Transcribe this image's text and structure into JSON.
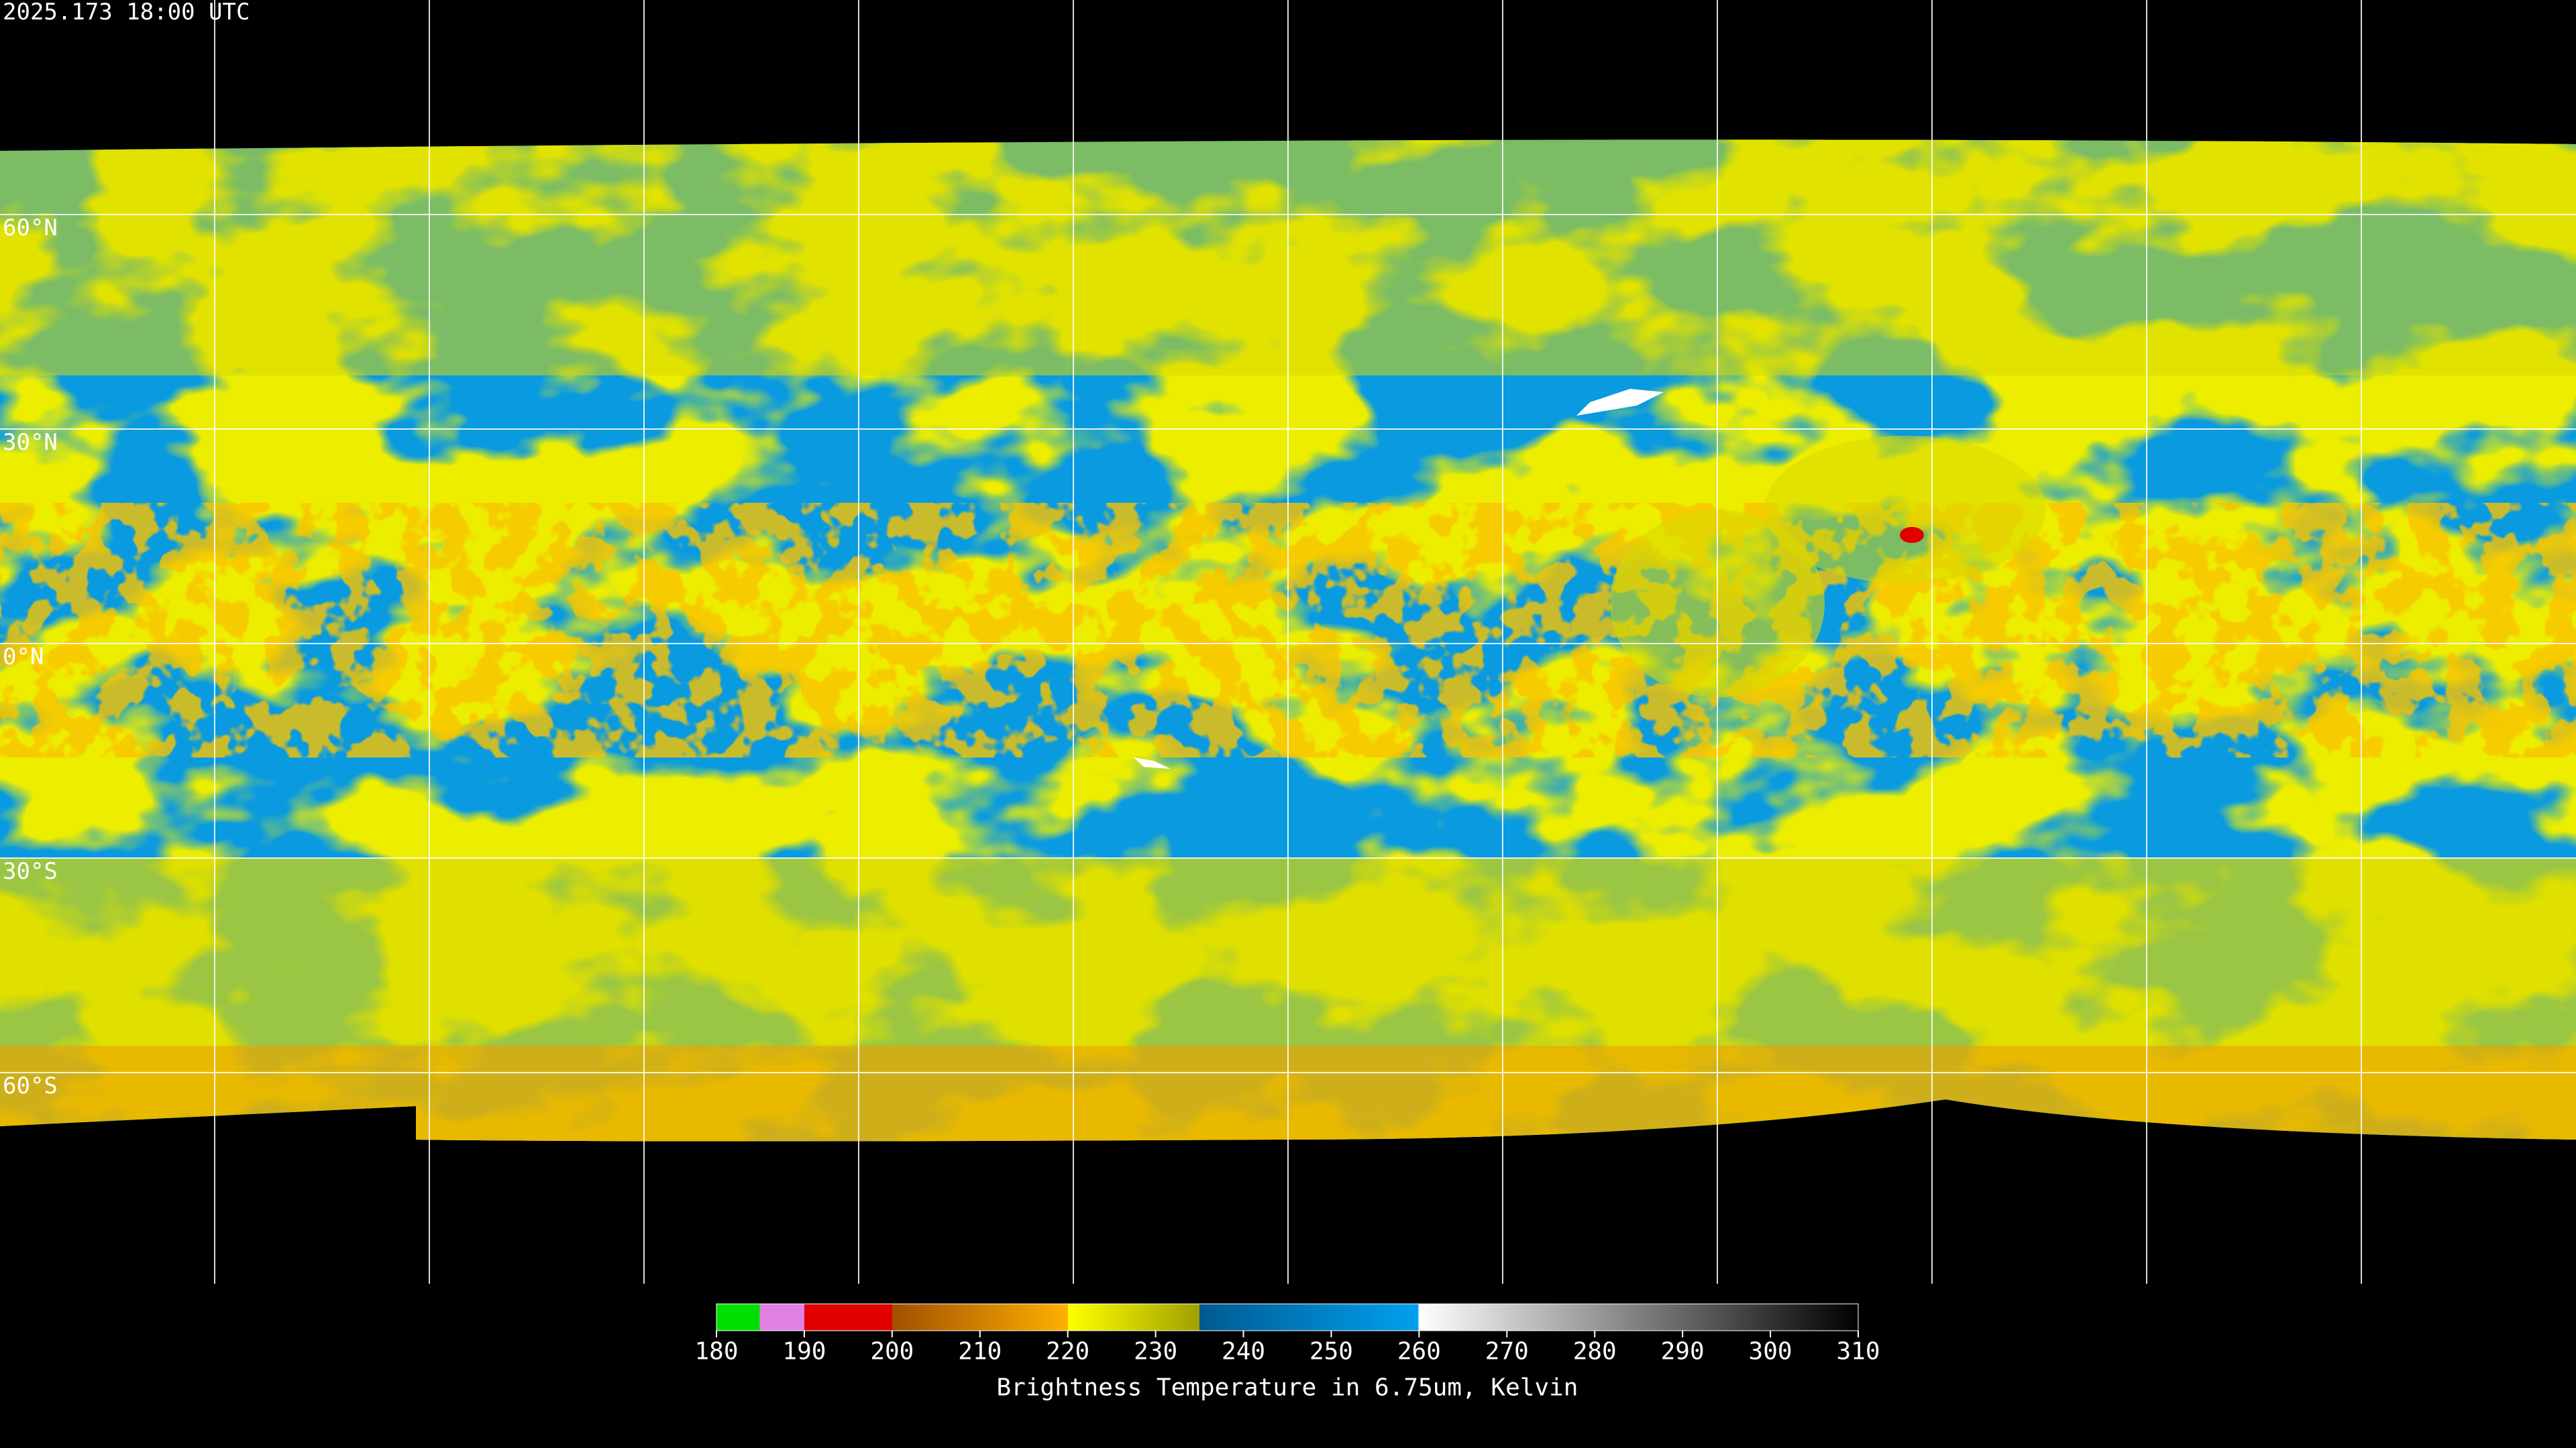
{
  "header": {
    "timestamp": "2025.173 18:00 UTC"
  },
  "latitude_labels": [
    "60°N",
    "30°N",
    "0°N",
    "30°S",
    "60°S"
  ],
  "colorbar": {
    "range": [
      180,
      310
    ],
    "ticks": [
      180,
      190,
      200,
      210,
      220,
      230,
      240,
      250,
      260,
      270,
      280,
      290,
      300,
      310
    ],
    "label": "Brightness Temperature in 6.75um, Kelvin"
  }
}
